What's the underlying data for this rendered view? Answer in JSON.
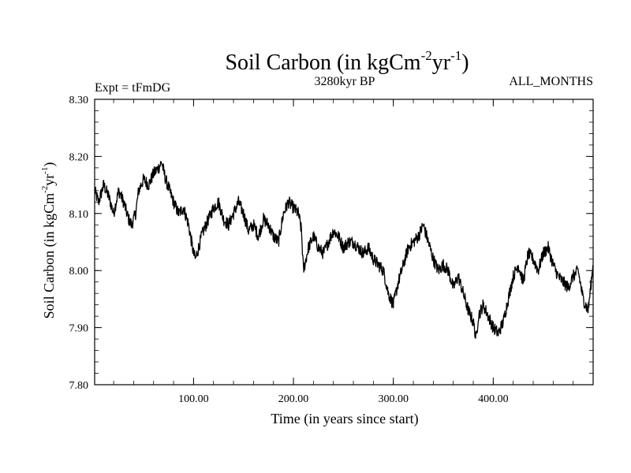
{
  "chart_data": {
    "type": "line",
    "title": "Soil Carbon (in kgCm",
    "title_sup1": "-2",
    "title_mid": "yr",
    "title_sup2": "-1",
    "title_end": ")",
    "subtitle_left": "Expt = tFmDG",
    "subtitle_center": "3280kyr BP",
    "subtitle_right": "ALL_MONTHS",
    "xlabel": "Time (in years since start)",
    "ylabel": "Soil Carbon (in kgCm",
    "ylabel_sup1": "-2",
    "ylabel_mid": "yr",
    "ylabel_sup2": "-1",
    "ylabel_end": ")",
    "xlim": [
      1,
      500
    ],
    "ylim": [
      7.8,
      8.3
    ],
    "xticks": [
      100,
      200,
      300,
      400
    ],
    "xtick_labels": [
      "100.00",
      "200.00",
      "300.00",
      "400.00"
    ],
    "yticks": [
      7.8,
      7.9,
      8.0,
      8.1,
      8.2,
      8.3
    ],
    "ytick_labels": [
      "7.80",
      "7.90",
      "8.00",
      "8.10",
      "8.20",
      "8.30"
    ],
    "grid": false,
    "series": [
      {
        "name": "Soil Carbon",
        "color": "#000000",
        "x": [
          1,
          5,
          10,
          15,
          20,
          25,
          30,
          35,
          38,
          42,
          45,
          50,
          55,
          60,
          65,
          68,
          72,
          76,
          80,
          85,
          90,
          95,
          100,
          102,
          105,
          108,
          110,
          115,
          120,
          125,
          130,
          135,
          140,
          145,
          150,
          155,
          160,
          165,
          170,
          175,
          180,
          185,
          190,
          195,
          200,
          205,
          208,
          210,
          215,
          220,
          225,
          230,
          235,
          240,
          245,
          250,
          255,
          260,
          265,
          270,
          275,
          280,
          285,
          290,
          295,
          300,
          305,
          310,
          315,
          320,
          325,
          330,
          335,
          340,
          345,
          350,
          355,
          360,
          365,
          370,
          375,
          380,
          383,
          385,
          390,
          395,
          400,
          405,
          410,
          415,
          420,
          425,
          430,
          435,
          440,
          445,
          450,
          455,
          460,
          465,
          470,
          475,
          480,
          485,
          490,
          495,
          500
        ],
        "values": [
          8.14,
          8.12,
          8.15,
          8.13,
          8.1,
          8.14,
          8.12,
          8.09,
          8.08,
          8.1,
          8.14,
          8.16,
          8.15,
          8.17,
          8.18,
          8.19,
          8.16,
          8.14,
          8.12,
          8.1,
          8.11,
          8.08,
          8.03,
          8.02,
          8.04,
          8.06,
          8.07,
          8.09,
          8.11,
          8.12,
          8.09,
          8.08,
          8.1,
          8.12,
          8.1,
          8.07,
          8.08,
          8.06,
          8.09,
          8.08,
          8.06,
          8.05,
          8.1,
          8.12,
          8.11,
          8.1,
          8.07,
          8.0,
          8.04,
          8.06,
          8.04,
          8.03,
          8.05,
          8.07,
          8.06,
          8.04,
          8.05,
          8.05,
          8.04,
          8.03,
          8.04,
          8.02,
          8.01,
          8.0,
          7.96,
          7.94,
          7.98,
          8.01,
          8.04,
          8.05,
          8.06,
          8.08,
          8.05,
          8.02,
          8.0,
          8.01,
          8.0,
          7.97,
          7.99,
          7.96,
          7.93,
          7.91,
          7.88,
          7.92,
          7.94,
          7.92,
          7.9,
          7.89,
          7.91,
          7.95,
          7.99,
          8.01,
          7.98,
          8.03,
          8.02,
          8.0,
          8.03,
          8.04,
          8.01,
          7.99,
          7.98,
          7.97,
          7.99,
          8.0,
          7.95,
          7.93,
          8.01
        ]
      }
    ]
  }
}
